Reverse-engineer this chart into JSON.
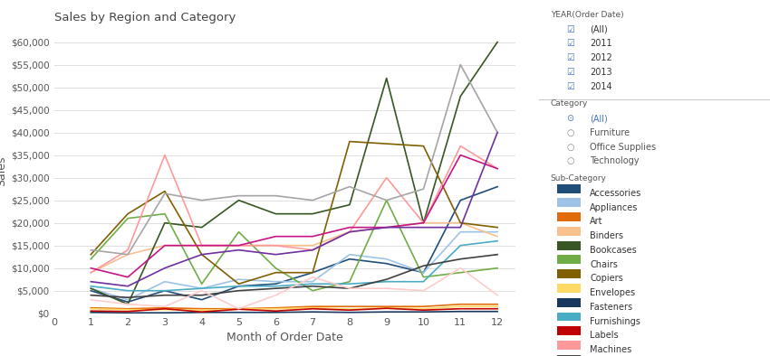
{
  "title": "Sales by Region and Category",
  "xlabel": "Month of Order Date",
  "ylabel": "Sales",
  "xlim": [
    0,
    12.5
  ],
  "ylim": [
    0,
    63000
  ],
  "xticks": [
    0,
    1,
    2,
    3,
    4,
    5,
    6,
    7,
    8,
    9,
    10,
    11,
    12
  ],
  "yticks": [
    0,
    5000,
    10000,
    15000,
    20000,
    25000,
    30000,
    35000,
    40000,
    45000,
    50000,
    55000,
    60000
  ],
  "ytick_labels": [
    "$0",
    "$5,000",
    "$10,000",
    "$15,000",
    "$20,000",
    "$25,000",
    "$30,000",
    "$35,000",
    "$40,000",
    "$45,000",
    "$50,000",
    "$55,000",
    "$60,000"
  ],
  "background_color": "#ffffff",
  "panel_color": "#f5f5f5",
  "grid_color": "#e0e0e0",
  "series": {
    "Accessories": {
      "color": "#1f4e79",
      "data": [
        null,
        5000,
        2500,
        5000,
        3000,
        6000,
        6500,
        9000,
        12000,
        11000,
        9000,
        25000,
        28000
      ]
    },
    "Appliances": {
      "color": "#9dc3e6",
      "data": [
        null,
        5500,
        3000,
        7000,
        5500,
        7500,
        7000,
        7000,
        13000,
        12000,
        9000,
        18000,
        18000
      ]
    },
    "Art": {
      "color": "#e36c0a",
      "data": [
        null,
        1200,
        1000,
        1200,
        1000,
        1000,
        1200,
        1500,
        1500,
        1500,
        1500,
        2000,
        2000
      ]
    },
    "Binders": {
      "color": "#fac090",
      "data": [
        null,
        9000,
        13000,
        15000,
        15000,
        15000,
        15000,
        15000,
        18000,
        19000,
        20000,
        20000,
        17000
      ]
    },
    "Bookcases": {
      "color": "#375623",
      "data": [
        null,
        5500,
        2000,
        20000,
        19000,
        25000,
        22000,
        22000,
        24000,
        52000,
        20000,
        48000,
        60000
      ]
    },
    "Chairs": {
      "color": "#70ad47",
      "data": [
        null,
        12000,
        21000,
        22000,
        6500,
        18000,
        10000,
        5000,
        7000,
        25000,
        8000,
        9000,
        10000
      ]
    },
    "Copiers": {
      "color": "#806000",
      "data": [
        null,
        13000,
        22000,
        27000,
        13000,
        6500,
        9000,
        9000,
        38000,
        37500,
        37000,
        20000,
        19000
      ]
    },
    "Envelopes": {
      "color": "#ffd966",
      "data": [
        null,
        1000,
        800,
        800,
        700,
        900,
        1000,
        1200,
        900,
        1200,
        1000,
        1500,
        1500
      ]
    },
    "Fasteners": {
      "color": "#17375e",
      "data": [
        null,
        200,
        100,
        100,
        200,
        200,
        200,
        300,
        200,
        300,
        300,
        400,
        400
      ]
    },
    "Furnishings": {
      "color": "#4bacc6",
      "data": [
        null,
        6000,
        5000,
        5000,
        5500,
        6000,
        6000,
        6500,
        6500,
        7000,
        7000,
        15000,
        16000
      ]
    },
    "Labels": {
      "color": "#c00000",
      "data": [
        null,
        500,
        400,
        1000,
        300,
        900,
        500,
        1000,
        700,
        1100,
        700,
        1000,
        1000
      ]
    },
    "Machines": {
      "color": "#ff9999",
      "data": [
        null,
        9000,
        14000,
        35000,
        15000,
        15000,
        15000,
        14000,
        18000,
        30000,
        20000,
        37000,
        32000
      ]
    },
    "Paper": {
      "color": "#404040",
      "data": [
        null,
        4000,
        3500,
        4000,
        4000,
        5000,
        5500,
        6000,
        5500,
        7500,
        10500,
        12000,
        13000
      ]
    },
    "Phones": {
      "color": "#a5a5a5",
      "data": [
        null,
        14000,
        13000,
        26500,
        25000,
        26000,
        26000,
        25000,
        28000,
        25000,
        27500,
        55000,
        40000
      ]
    },
    "Storage": {
      "color": "#c71585",
      "data": [
        null,
        10000,
        8000,
        15000,
        15000,
        15000,
        17000,
        17000,
        19000,
        19000,
        20000,
        35000,
        32000
      ]
    },
    "Supplies": {
      "color": "#ffcccc",
      "data": [
        null,
        3000,
        2000,
        1500,
        5000,
        1000,
        4000,
        8000,
        5500,
        5500,
        5000,
        10000,
        4000
      ]
    },
    "Tables": {
      "color": "#7030a0",
      "data": [
        null,
        7000,
        6000,
        10000,
        13000,
        14000,
        13000,
        14000,
        18000,
        19000,
        19000,
        19000,
        40000
      ]
    }
  },
  "legend_subcategory": {
    "Accessories": "#1f4e79",
    "Appliances": "#9dc3e6",
    "Art": "#e36c0a",
    "Binders": "#fac090",
    "Bookcases": "#375623",
    "Chairs": "#70ad47",
    "Copiers": "#806000",
    "Envelopes": "#ffd966",
    "Fasteners": "#17375e",
    "Furnishings": "#4bacc6",
    "Labels": "#c00000",
    "Machines": "#ff9999",
    "Paper": "#404040",
    "Phones": "#a5a5a5",
    "Storage": "#c71585",
    "Supplies": "#ffcccc",
    "Tables": "#7030a0"
  },
  "filter_panel": {
    "year_title": "YEAR(Order Date)",
    "year_items": [
      "(All)",
      "2011",
      "2012",
      "2013",
      "2014"
    ],
    "category_title": "Category",
    "category_items": [
      "(All)",
      "Furniture",
      "Office Supplies",
      "Technology"
    ],
    "subcategory_title": "Sub-Category"
  }
}
